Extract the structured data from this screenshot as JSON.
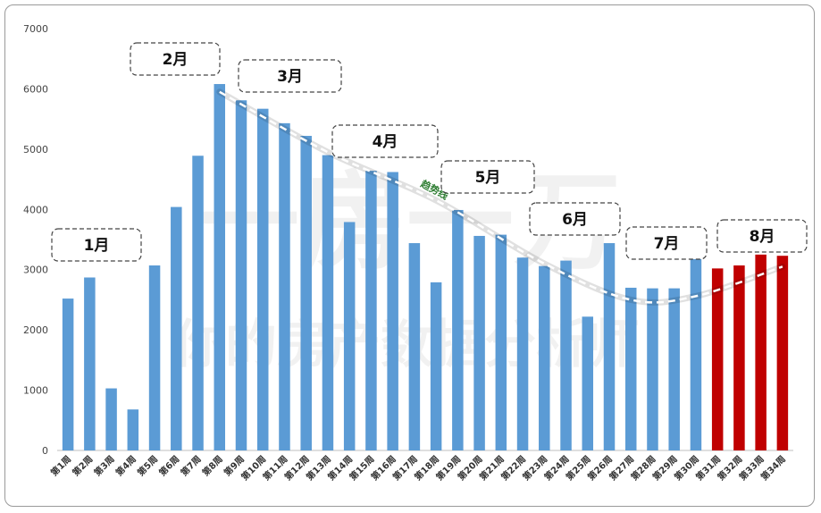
{
  "chart_data": {
    "type": "bar",
    "categories": [
      "第1周",
      "第2周",
      "第3周",
      "第4周",
      "第5周",
      "第6周",
      "第7周",
      "第8周",
      "第9周",
      "第10周",
      "第11周",
      "第12周",
      "第13周",
      "第14周",
      "第15周",
      "第16周",
      "第17周",
      "第18周",
      "第19周",
      "第20周",
      "第21周",
      "第22周",
      "第23周",
      "第24周",
      "第25周",
      "第26周",
      "第27周",
      "第28周",
      "第29周",
      "第30周",
      "第31周",
      "第32周",
      "第33周",
      "第34周"
    ],
    "values": [
      2520,
      2870,
      1030,
      680,
      3070,
      4040,
      4890,
      6080,
      5810,
      5670,
      5430,
      5220,
      4900,
      3790,
      4640,
      4620,
      3440,
      2790,
      3990,
      3560,
      3580,
      3200,
      3060,
      3150,
      2220,
      3440,
      2700,
      2690,
      2690,
      3200,
      3020,
      3070,
      3250,
      3230
    ],
    "highlight_from_index": 30,
    "colors": {
      "normal": "#5b9bd5",
      "highlight": "#c00000",
      "trend": "#ffffff",
      "grid": "#d9d9d9"
    },
    "ylim": [
      0,
      7000
    ],
    "yticks": [
      "0",
      "1000",
      "2000",
      "3000",
      "4000",
      "5000",
      "6000",
      "7000"
    ],
    "month_labels": [
      "1月",
      "2月",
      "3月",
      "4月",
      "5月",
      "6月",
      "7月",
      "8月"
    ],
    "trend_label": "趋势线",
    "watermark_line1": "一房一万",
    "watermark_line2": "你的房产数据分析师",
    "title": "",
    "xlabel": "",
    "ylabel": ""
  }
}
